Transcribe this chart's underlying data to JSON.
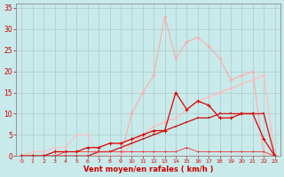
{
  "x": [
    0,
    1,
    2,
    3,
    4,
    5,
    6,
    7,
    8,
    9,
    10,
    11,
    12,
    13,
    14,
    15,
    16,
    17,
    18,
    19,
    20,
    21,
    22,
    23
  ],
  "line_pink_jagged": [
    0,
    0,
    0,
    0,
    0,
    0,
    0,
    0,
    0,
    0,
    10,
    15,
    19,
    33,
    23,
    27,
    28,
    26,
    23,
    18,
    19,
    20,
    0,
    0
  ],
  "line_pink_diagonal": [
    0,
    0,
    0,
    0,
    0,
    0,
    0,
    0,
    0,
    0,
    3,
    5,
    7,
    8,
    9,
    11,
    13,
    14,
    15,
    16,
    17,
    18,
    19,
    0
  ],
  "line_dark_red_jagged": [
    0,
    0,
    0,
    1,
    1,
    1,
    2,
    2,
    3,
    3,
    4,
    5,
    6,
    6,
    15,
    11,
    13,
    12,
    9,
    9,
    10,
    10,
    4,
    0
  ],
  "line_dark_red_slope": [
    0,
    0,
    0,
    0,
    0,
    0,
    0,
    1,
    1,
    2,
    3,
    4,
    5,
    6,
    7,
    8,
    9,
    9,
    10,
    10,
    10,
    10,
    10,
    0
  ],
  "line_flat_red": [
    0,
    0,
    0,
    0,
    1,
    1,
    1,
    1,
    1,
    1,
    1,
    1,
    1,
    1,
    1,
    2,
    1,
    1,
    1,
    1,
    1,
    1,
    1,
    0
  ],
  "line_flat_pink": [
    0,
    1,
    1,
    2,
    2,
    5,
    5,
    0,
    0,
    0,
    0,
    0,
    0,
    0,
    0,
    0,
    0,
    0,
    0,
    0,
    0,
    0,
    0,
    0
  ],
  "bg_color": "#c8eaea",
  "grid_color": "#b0c8c8",
  "xlabel": "Vent moyen/en rafales ( km/h )",
  "ylabel_ticks": [
    0,
    5,
    10,
    15,
    20,
    25,
    30,
    35
  ],
  "xlim": [
    -0.5,
    23.5
  ],
  "ylim": [
    0,
    36
  ],
  "axis_color": "#cc0000"
}
